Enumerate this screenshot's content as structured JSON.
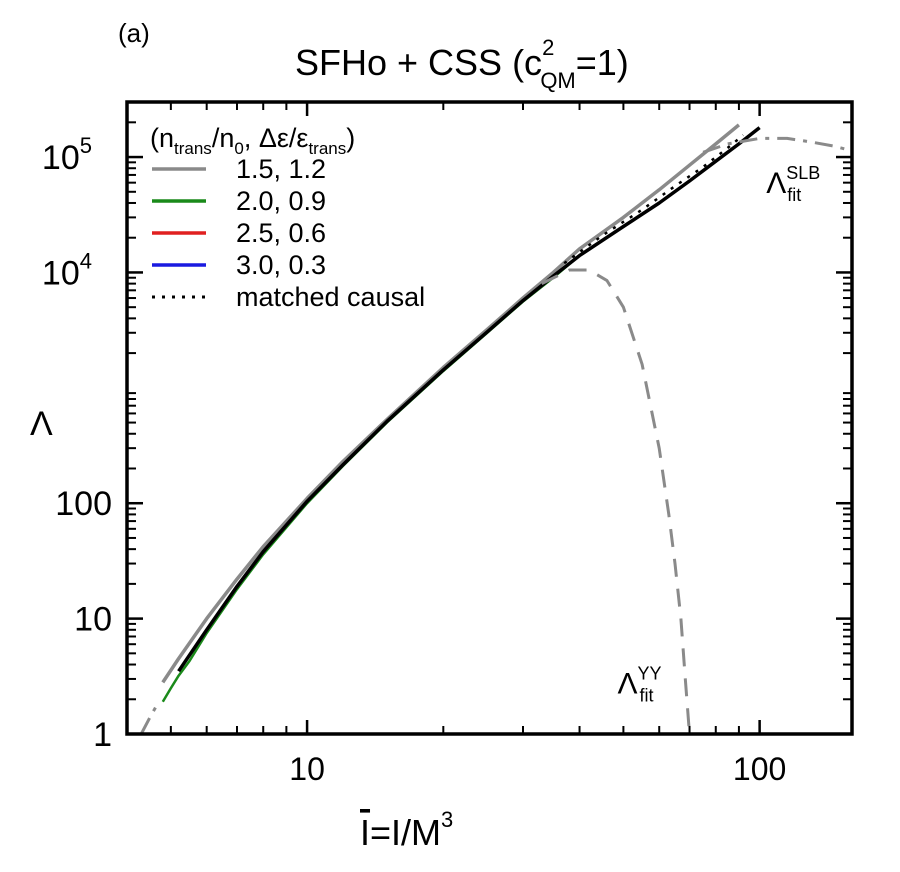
{
  "panel_label": "(a)",
  "chart_data": {
    "type": "line",
    "title": {
      "main": "SFHo + CSS (c",
      "sup": "2",
      "sub": "QM",
      "tail": "=1)"
    },
    "xlabel": {
      "bar": "I",
      "rest": "=I/M",
      "sup": "3"
    },
    "ylabel": "Λ",
    "x_scale": "log",
    "y_scale": "log",
    "xlim": [
      4.0,
      160
    ],
    "ylim": [
      1,
      300000
    ],
    "x_ticks": [
      {
        "value": 10,
        "label": "10"
      },
      {
        "value": 100,
        "label": "100"
      }
    ],
    "y_ticks": [
      {
        "value": 1,
        "label": "1",
        "exp": ""
      },
      {
        "value": 10,
        "label": "10",
        "exp": ""
      },
      {
        "value": 100,
        "label": "100",
        "exp": ""
      },
      {
        "value": 10000,
        "label": "10",
        "exp": "4"
      },
      {
        "value": 100000,
        "label": "10",
        "exp": "5"
      }
    ],
    "legend": {
      "placement": "top-left",
      "header": {
        "a": "(n",
        "a_sub": "trans",
        "b": "/n",
        "b_sub": "0",
        "c": ", Δε/ε",
        "c_sub": "trans",
        "d": ")"
      },
      "entries": [
        {
          "label": "1.5, 1.2",
          "color": "#8a8a8a",
          "style": "solid"
        },
        {
          "label": "2.0, 0.9",
          "color": "#1a8a1a",
          "style": "solid"
        },
        {
          "label": "2.5, 0.6",
          "color": "#e02020",
          "style": "solid"
        },
        {
          "label": "3.0, 0.3",
          "color": "#1a1ae0",
          "style": "solid"
        },
        {
          "label": "matched causal",
          "color": "#000000",
          "style": "dotted"
        }
      ]
    },
    "series": [
      {
        "name": "1.5, 1.2",
        "color": "#8a8a8a",
        "style": "solid",
        "width": 3.5,
        "points": [
          [
            4.8,
            2.8
          ],
          [
            5.2,
            4.5
          ],
          [
            6,
            10
          ],
          [
            7,
            22
          ],
          [
            8,
            42
          ],
          [
            10,
            110
          ],
          [
            12,
            230
          ],
          [
            15,
            530
          ],
          [
            20,
            1500
          ],
          [
            25,
            3200
          ],
          [
            30,
            6000
          ],
          [
            35,
            10000
          ],
          [
            40,
            16000
          ],
          [
            50,
            30000
          ],
          [
            60,
            52000
          ],
          [
            70,
            85000
          ],
          [
            80,
            130000
          ],
          [
            90,
            190000
          ]
        ]
      },
      {
        "name": "2.0, 0.9",
        "color": "#1a8a1a",
        "style": "solid",
        "width": 2.5,
        "points": [
          [
            4.8,
            1.9
          ],
          [
            5.0,
            2.5
          ],
          [
            5.2,
            3.2
          ],
          [
            5.5,
            4.3
          ],
          [
            6,
            7.5
          ],
          [
            7,
            18
          ],
          [
            8,
            36
          ],
          [
            10,
            100
          ],
          [
            12,
            210
          ],
          [
            15,
            500
          ],
          [
            20,
            1400
          ],
          [
            25,
            3000
          ],
          [
            30,
            5600
          ],
          [
            35,
            9000
          ],
          [
            40,
            14000
          ]
        ]
      },
      {
        "name": "matched causal",
        "color": "#000000",
        "style": "dotted",
        "width": 2.5,
        "points": [
          [
            37,
            12000
          ],
          [
            45,
            21000
          ],
          [
            55,
            35000
          ],
          [
            65,
            56000
          ],
          [
            75,
            82000
          ],
          [
            85,
            120000
          ],
          [
            92,
            155000
          ]
        ]
      },
      {
        "name": "",
        "color": "#000000",
        "style": "solid",
        "width": 3.5,
        "points": [
          [
            5.2,
            3.5
          ],
          [
            6,
            8
          ],
          [
            7,
            19
          ],
          [
            8,
            38
          ],
          [
            10,
            104
          ],
          [
            12,
            215
          ],
          [
            15,
            510
          ],
          [
            20,
            1430
          ],
          [
            25,
            3050
          ],
          [
            30,
            5700
          ],
          [
            35,
            9300
          ],
          [
            40,
            14000
          ],
          [
            50,
            25000
          ],
          [
            60,
            40000
          ],
          [
            70,
            62000
          ],
          [
            80,
            92000
          ],
          [
            90,
            130000
          ],
          [
            100,
            180000
          ]
        ]
      },
      {
        "name": "",
        "color": "#8a8a8a",
        "style": "dashed",
        "width": 3,
        "points": [
          [
            33,
            8000
          ],
          [
            38,
            10500
          ],
          [
            42,
            10500
          ],
          [
            46,
            8500
          ],
          [
            50,
            5000
          ],
          [
            55,
            1600
          ],
          [
            60,
            300
          ],
          [
            63,
            80
          ],
          [
            65,
            30
          ],
          [
            67,
            10
          ],
          [
            68.5,
            3
          ],
          [
            70,
            1
          ]
        ]
      },
      {
        "name": "",
        "color": "#8a8a8a",
        "style": "dashdot",
        "width": 3,
        "points": [
          [
            4.3,
            1
          ],
          [
            4.5,
            1.4
          ],
          [
            4.7,
            1.9
          ]
        ]
      },
      {
        "name": "",
        "color": "#8a8a8a",
        "style": "dashdot",
        "width": 3,
        "points": [
          [
            75,
            110000
          ],
          [
            85,
            130000
          ],
          [
            100,
            145000
          ],
          [
            115,
            145000
          ],
          [
            130,
            135000
          ],
          [
            145,
            125000
          ],
          [
            158,
            115000
          ]
        ]
      }
    ],
    "annotations": [
      {
        "base": "Λ",
        "sub": "fit",
        "sup": "SLB",
        "at": [
          130,
          70000
        ]
      },
      {
        "base": "Λ",
        "sub": "fit",
        "sup": "YY",
        "at": [
          61,
          3.2
        ]
      }
    ]
  }
}
